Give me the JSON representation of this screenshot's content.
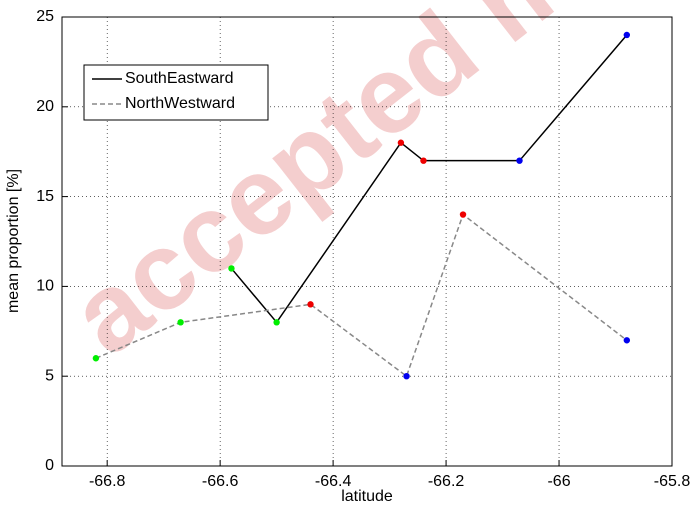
{
  "chart_data": {
    "type": "line",
    "xlabel": "latitude",
    "ylabel": "mean proportion [%]",
    "watermark": "accepted m",
    "xlim": [
      -66.88,
      -65.8
    ],
    "xticks": [
      -66.8,
      -66.6,
      -66.4,
      -66.2,
      -66,
      -65.8
    ],
    "ylim": [
      0,
      25
    ],
    "yticks": [
      0,
      5,
      10,
      15,
      20,
      25
    ],
    "grid": true,
    "legend": "upper left",
    "series": [
      {
        "name": "SouthEastward",
        "color": "#000000",
        "dash": "solid",
        "x": [
          -66.58,
          -66.5,
          -66.28,
          -66.24,
          -66.07,
          -65.88
        ],
        "values": [
          11,
          8,
          18,
          17,
          17,
          24
        ],
        "marker_colors": [
          "#00ee00",
          "#00ee00",
          "#ee0000",
          "#ee0000",
          "#0000ee",
          "#0000ee"
        ]
      },
      {
        "name": "NorthWestward",
        "color": "#888888",
        "dash": "dashed",
        "x": [
          -66.82,
          -66.67,
          -66.44,
          -66.27,
          -66.17,
          -65.88
        ],
        "values": [
          6,
          8,
          9,
          5,
          14,
          7
        ],
        "marker_colors": [
          "#00ee00",
          "#00ee00",
          "#ee0000",
          "#0000ee",
          "#ee0000",
          "#0000ee"
        ]
      }
    ]
  }
}
